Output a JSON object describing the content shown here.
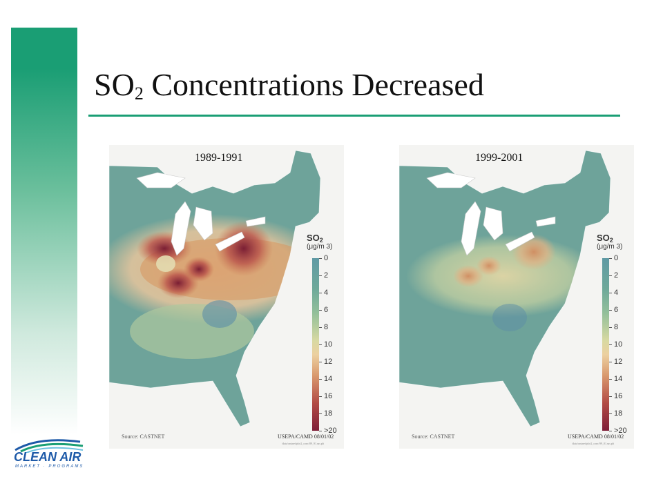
{
  "slide": {
    "title_main": "SO",
    "title_sub": "2",
    "title_rest": " Concentrations Decreased"
  },
  "maps": [
    {
      "period": "1989-1991",
      "source": "Source: CASTNET",
      "credit": "USEPA/CAMD 08/01/02",
      "fineprint": "/data/castnet/plot2_conc/89_91.sas.plt"
    },
    {
      "period": "1999-2001",
      "source": "Source: CASTNET",
      "credit": "USEPA/CAMD 08/01/02",
      "fineprint": "/data/castnet/plot2_conc/99_01.sas.plt"
    }
  ],
  "legend": {
    "title_main": "SO",
    "title_sub": "2",
    "unit": "(μg/m 3)",
    "ticks": [
      "0",
      "2",
      "4",
      "6",
      "8",
      "10",
      "12",
      "14",
      "16",
      "18",
      ">20"
    ]
  },
  "logo": {
    "text": "CLEAN AIR",
    "subtext": "MARKET · PROGRAMS"
  },
  "colors": {
    "accent": "#1a9e74",
    "low": "#5f9aa4",
    "mid": "#ecd0a0",
    "high": "#7e1e38",
    "logo": "#1e5aa8"
  }
}
